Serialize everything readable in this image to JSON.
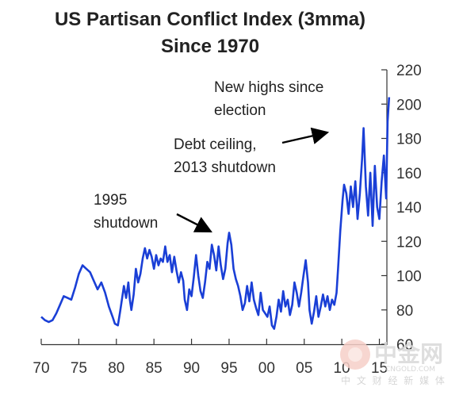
{
  "chart_data": {
    "type": "line",
    "title": [
      "US Partisan Conflict Index (3mma)",
      "Since 1970"
    ],
    "xlim": [
      1970,
      2016
    ],
    "ylim": [
      60,
      220
    ],
    "x_ticks": [
      1970,
      1975,
      1980,
      1985,
      1990,
      1995,
      2000,
      2005,
      2010,
      2015
    ],
    "x_tick_labels": [
      "70",
      "75",
      "80",
      "85",
      "90",
      "95",
      "00",
      "05",
      "10",
      "15"
    ],
    "y_ticks": [
      60,
      80,
      100,
      120,
      140,
      160,
      180,
      200,
      220
    ],
    "y_tick_labels": [
      "60",
      "80",
      "100",
      "120",
      "140",
      "160",
      "180",
      "200",
      "220"
    ],
    "y_axis_side": "right",
    "grid": false,
    "series": [
      {
        "color": "#1a3fd6",
        "points": [
          [
            1970.0,
            76
          ],
          [
            1970.5,
            74
          ],
          [
            1971.0,
            73
          ],
          [
            1971.5,
            74
          ],
          [
            1972.0,
            78
          ],
          [
            1972.5,
            83
          ],
          [
            1973.0,
            88
          ],
          [
            1973.5,
            87
          ],
          [
            1974.0,
            86
          ],
          [
            1974.5,
            93
          ],
          [
            1975.0,
            101
          ],
          [
            1975.5,
            106
          ],
          [
            1976.0,
            104
          ],
          [
            1976.5,
            102
          ],
          [
            1977.0,
            97
          ],
          [
            1977.5,
            92
          ],
          [
            1978.0,
            96
          ],
          [
            1978.5,
            90
          ],
          [
            1979.0,
            82
          ],
          [
            1979.5,
            76
          ],
          [
            1979.8,
            72
          ],
          [
            1980.2,
            71
          ],
          [
            1980.5,
            79
          ],
          [
            1980.8,
            88
          ],
          [
            1981.0,
            94
          ],
          [
            1981.3,
            87
          ],
          [
            1981.6,
            96
          ],
          [
            1981.8,
            86
          ],
          [
            1982.0,
            80
          ],
          [
            1982.3,
            89
          ],
          [
            1982.6,
            104
          ],
          [
            1982.9,
            96
          ],
          [
            1983.2,
            101
          ],
          [
            1983.5,
            110
          ],
          [
            1983.8,
            116
          ],
          [
            1984.1,
            110
          ],
          [
            1984.4,
            115
          ],
          [
            1984.7,
            111
          ],
          [
            1985.0,
            104
          ],
          [
            1985.3,
            112
          ],
          [
            1985.6,
            106
          ],
          [
            1985.9,
            110
          ],
          [
            1986.2,
            108
          ],
          [
            1986.5,
            117
          ],
          [
            1986.8,
            108
          ],
          [
            1987.1,
            112
          ],
          [
            1987.4,
            102
          ],
          [
            1987.7,
            111
          ],
          [
            1988.0,
            103
          ],
          [
            1988.3,
            96
          ],
          [
            1988.6,
            102
          ],
          [
            1988.9,
            97
          ],
          [
            1989.1,
            86
          ],
          [
            1989.4,
            80
          ],
          [
            1989.7,
            92
          ],
          [
            1990.0,
            88
          ],
          [
            1990.3,
            99
          ],
          [
            1990.6,
            112
          ],
          [
            1990.9,
            100
          ],
          [
            1991.2,
            91
          ],
          [
            1991.5,
            87
          ],
          [
            1991.8,
            96
          ],
          [
            1992.1,
            108
          ],
          [
            1992.4,
            104
          ],
          [
            1992.7,
            118
          ],
          [
            1993.0,
            112
          ],
          [
            1993.3,
            103
          ],
          [
            1993.6,
            117
          ],
          [
            1993.9,
            106
          ],
          [
            1994.2,
            98
          ],
          [
            1994.5,
            104
          ],
          [
            1994.8,
            119
          ],
          [
            1995.0,
            125
          ],
          [
            1995.3,
            118
          ],
          [
            1995.6,
            104
          ],
          [
            1995.9,
            98
          ],
          [
            1996.2,
            94
          ],
          [
            1996.5,
            88
          ],
          [
            1996.8,
            80
          ],
          [
            1997.1,
            84
          ],
          [
            1997.4,
            94
          ],
          [
            1997.7,
            85
          ],
          [
            1998.0,
            96
          ],
          [
            1998.3,
            86
          ],
          [
            1998.6,
            81
          ],
          [
            1998.9,
            77
          ],
          [
            1999.2,
            90
          ],
          [
            1999.5,
            80
          ],
          [
            1999.8,
            78
          ],
          [
            2000.1,
            76
          ],
          [
            2000.4,
            82
          ],
          [
            2000.7,
            71
          ],
          [
            2001.0,
            69
          ],
          [
            2001.3,
            76
          ],
          [
            2001.6,
            86
          ],
          [
            2001.9,
            79
          ],
          [
            2002.2,
            91
          ],
          [
            2002.5,
            82
          ],
          [
            2002.8,
            86
          ],
          [
            2003.1,
            77
          ],
          [
            2003.4,
            83
          ],
          [
            2003.7,
            96
          ],
          [
            2004.0,
            90
          ],
          [
            2004.3,
            82
          ],
          [
            2004.6,
            90
          ],
          [
            2004.9,
            100
          ],
          [
            2005.2,
            109
          ],
          [
            2005.5,
            96
          ],
          [
            2005.7,
            80
          ],
          [
            2006.0,
            72
          ],
          [
            2006.3,
            79
          ],
          [
            2006.6,
            88
          ],
          [
            2006.9,
            76
          ],
          [
            2007.2,
            82
          ],
          [
            2007.5,
            89
          ],
          [
            2007.8,
            82
          ],
          [
            2008.1,
            88
          ],
          [
            2008.4,
            80
          ],
          [
            2008.7,
            86
          ],
          [
            2009.0,
            83
          ],
          [
            2009.3,
            90
          ],
          [
            2009.5,
            104
          ],
          [
            2009.8,
            126
          ],
          [
            2010.1,
            144
          ],
          [
            2010.3,
            153
          ],
          [
            2010.6,
            148
          ],
          [
            2010.9,
            136
          ],
          [
            2011.2,
            152
          ],
          [
            2011.5,
            140
          ],
          [
            2011.8,
            155
          ],
          [
            2012.1,
            133
          ],
          [
            2012.4,
            148
          ],
          [
            2012.7,
            168
          ],
          [
            2012.9,
            186
          ],
          [
            2013.2,
            152
          ],
          [
            2013.5,
            135
          ],
          [
            2013.8,
            160
          ],
          [
            2014.1,
            129
          ],
          [
            2014.4,
            164
          ],
          [
            2014.7,
            140
          ],
          [
            2015.0,
            133
          ],
          [
            2015.3,
            155
          ],
          [
            2015.6,
            170
          ],
          [
            2015.9,
            145
          ],
          [
            2016.1,
            190
          ],
          [
            2016.3,
            204
          ]
        ]
      }
    ],
    "annotations": [
      {
        "lines": [
          "New highs since",
          "election"
        ]
      },
      {
        "lines": [
          "Debt ceiling,",
          "2013 shutdown"
        ]
      },
      {
        "lines": [
          "1995",
          "shutdown"
        ]
      }
    ]
  },
  "watermark": {
    "brand_cn": "中金网",
    "brand_en": "CNGOLD.COM",
    "slogan_cn": "中 文 财 经 新 媒 体"
  }
}
